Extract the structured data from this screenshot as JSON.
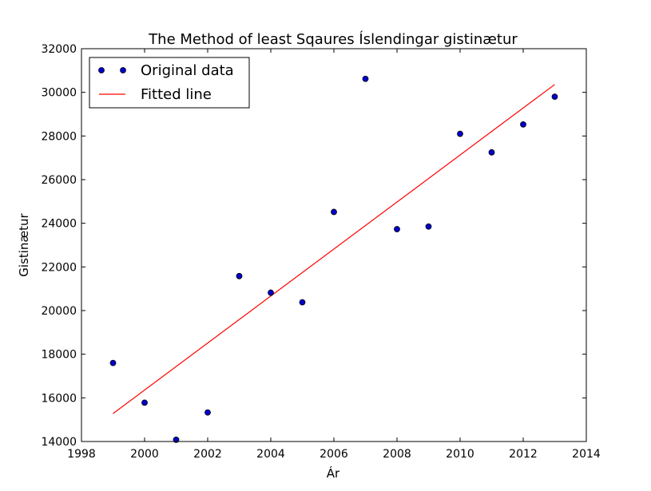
{
  "chart_data": {
    "type": "scatter",
    "title": "The Method of least Sqaures Íslendingar gistinætur",
    "xlabel": "Ár",
    "ylabel": "Gistinætur",
    "xlim": [
      1998,
      2014
    ],
    "ylim": [
      14000,
      32000
    ],
    "xticks": [
      "1998",
      "2000",
      "2002",
      "2004",
      "2006",
      "2008",
      "2010",
      "2012",
      "2014"
    ],
    "yticks": [
      "14000",
      "16000",
      "18000",
      "20000",
      "22000",
      "24000",
      "26000",
      "28000",
      "30000",
      "32000"
    ],
    "grid": false,
    "legend_position": "top-left",
    "series": [
      {
        "name": "Original data",
        "kind": "scatter",
        "color": "#0000cc",
        "x": [
          1999,
          2000,
          2001,
          2002,
          2003,
          2004,
          2005,
          2006,
          2007,
          2008,
          2009,
          2010,
          2011,
          2012,
          2013
        ],
        "y": [
          17600,
          15780,
          14080,
          15330,
          21580,
          20820,
          20380,
          24520,
          30620,
          23730,
          23850,
          28100,
          27250,
          28530,
          29800
        ]
      },
      {
        "name": "Fitted line",
        "kind": "line",
        "color": "#ff0000",
        "x": [
          1999,
          2013
        ],
        "y": [
          15280,
          30360
        ]
      }
    ]
  }
}
